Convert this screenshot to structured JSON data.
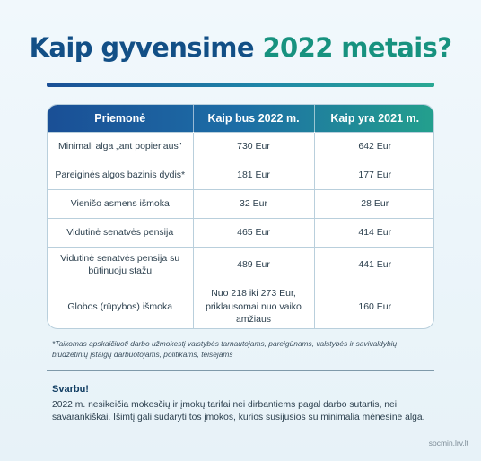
{
  "title": {
    "part1": "Kaip gyvensime",
    "part2": "2022 metais?"
  },
  "table": {
    "headers": [
      "Priemonė",
      "Kaip bus 2022 m.",
      "Kaip yra 2021 m."
    ],
    "rows": [
      [
        "Minimali alga „ant popieriaus\"",
        "730 Eur",
        "642 Eur"
      ],
      [
        "Pareiginės algos bazinis dydis*",
        "181 Eur",
        "177 Eur"
      ],
      [
        "Vienišo asmens išmoka",
        "32 Eur",
        "28 Eur"
      ],
      [
        "Vidutinė senatvės pensija",
        "465 Eur",
        "414 Eur"
      ],
      [
        "Vidutinė senatvės pensija su būtinuoju stažu",
        "489 Eur",
        "441 Eur"
      ],
      [
        "Globos (rūpybos) išmoka",
        "Nuo 218 iki 273 Eur, priklausomai nuo vaiko amžiaus",
        "160 Eur"
      ]
    ]
  },
  "footnote": "*Taikomas apskaičiuoti darbo užmokestį valstybės tarnautojams, pareigūnams, valstybės ir savivaldybių biudžetinių įstaigų darbuotojams, politikams, teisėjams",
  "important": {
    "title": "Svarbu!",
    "text": "2022 m. nesikeičia mokesčių ir įmokų tarifai nei dirbantiems pagal darbo sutartis, nei savarankiškai. Išimtį gali sudaryti tos įmokos, kurios susijusios su minimalia mėnesine alga."
  },
  "site": "socmin.lrv.lt",
  "colors": {
    "title_blue": "#124f86",
    "title_teal": "#17927f",
    "header_start": "#1a4f96",
    "header_end": "#23a08d"
  }
}
